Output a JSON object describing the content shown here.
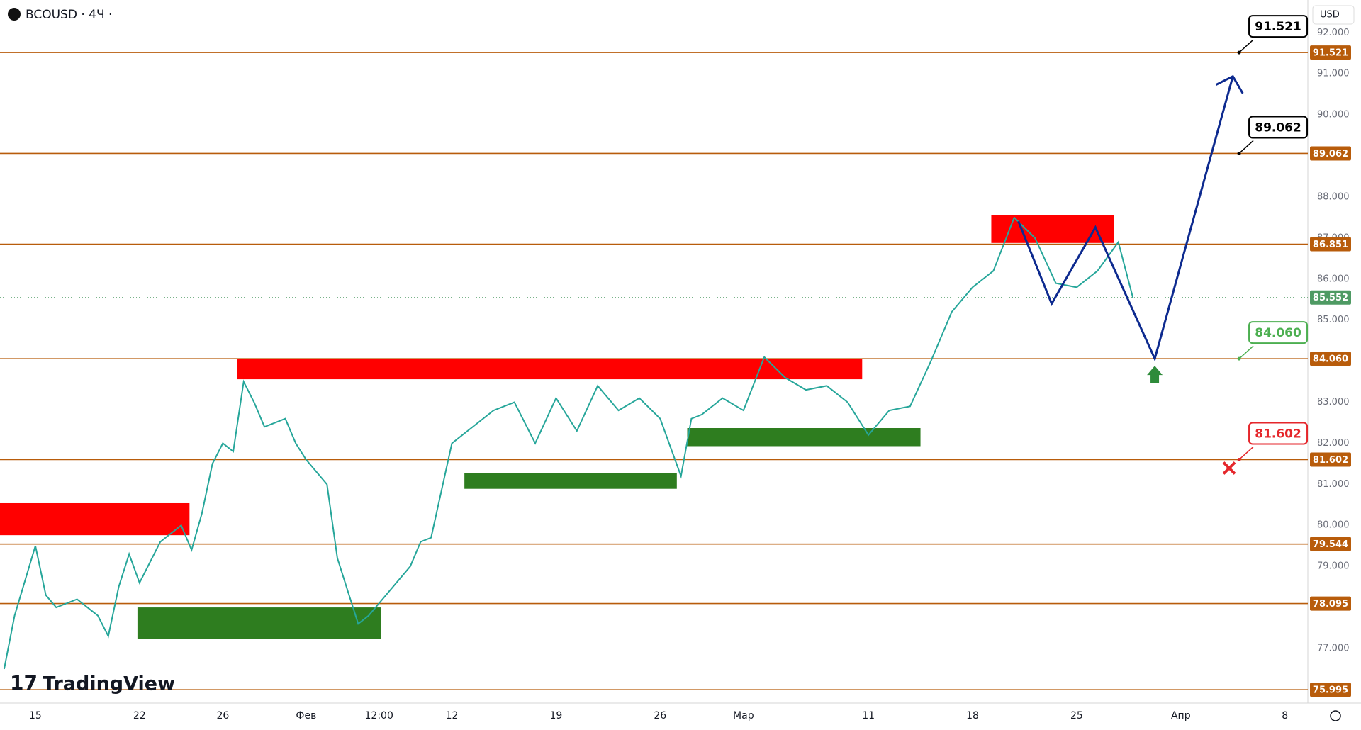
{
  "chart_data": {
    "type": "line",
    "title": "BCOUSD · 4Ч ·",
    "currency": "USD",
    "watermark": "TradingView",
    "x": [
      -1.5,
      -1,
      0,
      0.5,
      1,
      2,
      3,
      3.5,
      4,
      4.5,
      5,
      6,
      7,
      7.5,
      8,
      8.5,
      9,
      9.5,
      10,
      10.5,
      11,
      12,
      12.5,
      13,
      14,
      14.5,
      15,
      15.5,
      16,
      17,
      18,
      18.5,
      19,
      20,
      21,
      22,
      23,
      24,
      25,
      26,
      27,
      28,
      29,
      30,
      31,
      31.5,
      32,
      33,
      34,
      35,
      36,
      37,
      38,
      39,
      40,
      41,
      42,
      43,
      44,
      45,
      46,
      47,
      48,
      49,
      50,
      51,
      52,
      52.7
    ],
    "series": [
      {
        "color": "#26a69a",
        "values": [
          76.5,
          77.8,
          79.5,
          78.3,
          78.0,
          78.2,
          77.8,
          77.3,
          78.5,
          79.3,
          78.6,
          79.6,
          80.0,
          79.4,
          80.3,
          81.5,
          82.0,
          81.8,
          83.5,
          83.0,
          82.4,
          82.6,
          82.0,
          81.6,
          81.0,
          79.2,
          78.4,
          77.6,
          77.8,
          78.4,
          79.0,
          79.6,
          79.7,
          82.0,
          82.4,
          82.8,
          83.0,
          82.0,
          83.1,
          82.3,
          83.4,
          82.8,
          83.1,
          82.6,
          81.2,
          82.6,
          82.7,
          83.1,
          82.8,
          84.1,
          83.6,
          83.3,
          83.4,
          83.0,
          82.2,
          82.8,
          82.9,
          84.0,
          85.2,
          85.8,
          86.2,
          87.5,
          87.0,
          85.9,
          85.8,
          86.2,
          86.9,
          85.55
        ]
      }
    ],
    "xlim": [
      -1.7,
      61.1
    ],
    "xticks": [
      {
        "value": 0,
        "label": "15"
      },
      {
        "value": 5,
        "label": "22"
      },
      {
        "value": 9,
        "label": "26"
      },
      {
        "value": 13,
        "label": "Фев"
      },
      {
        "value": 16.5,
        "label": "12:00"
      },
      {
        "value": 20,
        "label": "12"
      },
      {
        "value": 25,
        "label": "19"
      },
      {
        "value": 30,
        "label": "26"
      },
      {
        "value": 34,
        "label": "Мар"
      },
      {
        "value": 40,
        "label": "11"
      },
      {
        "value": 45,
        "label": "18"
      },
      {
        "value": 50,
        "label": "25"
      },
      {
        "value": 55,
        "label": "Апр"
      },
      {
        "value": 60,
        "label": "8"
      }
    ],
    "ylim": [
      75.67,
      92.8
    ],
    "yticks": [
      {
        "value": 77,
        "label": "77.000"
      },
      {
        "value": 78,
        "label": "78.000"
      },
      {
        "value": 79,
        "label": "79.000"
      },
      {
        "value": 80,
        "label": "80.000"
      },
      {
        "value": 81,
        "label": "81.000"
      },
      {
        "value": 82,
        "label": "82.000"
      },
      {
        "value": 83,
        "label": "83.000"
      },
      {
        "value": 84,
        "label": "84.000"
      },
      {
        "value": 85,
        "label": "85.000"
      },
      {
        "value": 86,
        "label": "86.000"
      },
      {
        "value": 87,
        "label": "87.000"
      },
      {
        "value": 88,
        "label": "88.000"
      },
      {
        "value": 89,
        "label": "89.000"
      },
      {
        "value": 90,
        "label": "90.000"
      },
      {
        "value": 91,
        "label": "91.000"
      },
      {
        "value": 92,
        "label": "92.000"
      }
    ],
    "level_color": "#b85c0b",
    "levels": [
      {
        "value": 91.521,
        "label": "91.521"
      },
      {
        "value": 89.062,
        "label": "89.062"
      },
      {
        "value": 86.851,
        "label": "86.851"
      },
      {
        "value": 84.06,
        "label": "84.060"
      },
      {
        "value": 81.602,
        "label": "81.602"
      },
      {
        "value": 79.544,
        "label": "79.544"
      },
      {
        "value": 78.095,
        "label": "78.095"
      },
      {
        "value": 75.995,
        "label": "75.995"
      }
    ],
    "current_price": {
      "value": 85.552,
      "label": "85.552",
      "color": "#4e9a63"
    },
    "zones": [
      {
        "color": "#ff0000",
        "x": [
          -1.7,
          7.4
        ],
        "y": [
          79.76,
          80.54
        ]
      },
      {
        "color": "#ff0000",
        "x": [
          9.7,
          39.7
        ],
        "y": [
          83.56,
          84.07
        ]
      },
      {
        "color": "#ff0000",
        "x": [
          45.9,
          51.8
        ],
        "y": [
          86.88,
          87.56
        ]
      },
      {
        "color": "#2e7d1f",
        "x": [
          4.9,
          16.6
        ],
        "y": [
          77.23,
          78.0
        ]
      },
      {
        "color": "#2e7d1f",
        "x": [
          20.6,
          30.8
        ],
        "y": [
          80.89,
          81.27
        ]
      },
      {
        "color": "#2e7d1f",
        "x": [
          31.3,
          42.5
        ],
        "y": [
          81.93,
          82.37
        ]
      }
    ],
    "projection": {
      "color": "#0d2a8f",
      "x": [
        47.2,
        48.8,
        50.9,
        53.75,
        57.5
      ],
      "y": [
        87.41,
        85.4,
        87.26,
        84.06,
        90.94
      ]
    },
    "targets": [
      {
        "value": 91.521,
        "label": "91.521",
        "color": "#000000"
      },
      {
        "value": 89.062,
        "label": "89.062",
        "color": "#000000"
      },
      {
        "value": 84.06,
        "label": "84.060",
        "color": "#4caf50"
      },
      {
        "value": 81.602,
        "label": "81.602",
        "color": "#e5262b"
      }
    ],
    "target_x": 57.8
  }
}
